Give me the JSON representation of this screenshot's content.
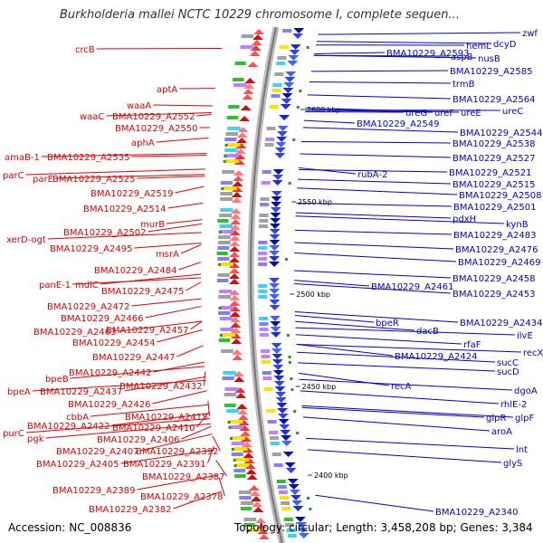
{
  "title": "Burkholderia mallei NCTC 10229 chromosome I, complete sequen...",
  "footer": {
    "accession": "Accession: NC_008836",
    "topology": "Topology: circular; Length: 3,458,208 bp; Genes: 3,384"
  },
  "colors": {
    "left_strand": "#e00000",
    "right_strand": "#0000d0",
    "backbone": "#888888",
    "tick": "#229922"
  },
  "kbp_marks": [
    "2600 kbp",
    "2550 kbp",
    "2500 kbp",
    "2450 kbp",
    "2400 kbp"
  ],
  "left_labels": [
    "crcB",
    "aptA",
    "waaA",
    "waaC",
    "BMA10229_A2552",
    "BMA10229_A2550",
    "aphA",
    "amaB-1",
    "BMA10229_A2535",
    "parC",
    "parE",
    "BMA10229_A2525",
    "BMA10229_A2519",
    "BMA10229_A2514",
    "murB",
    "BMA10229_A2502",
    "xerD-ogt",
    "BMA10229_A2495",
    "msrA",
    "BMA10229_A2484",
    "panE-1",
    "mdlC",
    "BMA10229_A2475",
    "BMA10229_A2472",
    "BMA10229_A2466",
    "BMA10229_A2463",
    "BMA10229_A2457",
    "BMA10229_A2454",
    "BMA10229_A2447",
    "BMA10229_A2442",
    "BMA10229_A2432",
    "bpeB",
    "bpeA",
    "BMA10229_A2437",
    "BMA10229_A2426",
    "cbbA",
    "BMA10229_A2415",
    "purC",
    "BMA10229_A2422",
    "BMA10229_A2410",
    "pgk",
    "BMA10229_A2406",
    "BMA10229_A2407",
    "BMA10229_A2392",
    "BMA10229_A2405",
    "BMA10229_A2391",
    "BMA10229_A2387",
    "BMA10229_A2389",
    "BMA10229_A2378",
    "BMA10229_A2382"
  ],
  "right_labels": [
    "zwf",
    "hemL",
    "dcyD",
    "BMA10229_A2593",
    "aspB",
    "nusB",
    "BMA10229_A2585",
    "trmB",
    "BMA10229_A2564",
    "ureG",
    "ureF",
    "ureE",
    "ureC",
    "BMA10229_A2549",
    "BMA10229_A2544",
    "BMA10229_A2538",
    "BMA10229_A2527",
    "rubA-2",
    "BMA10229_A2521",
    "BMA10229_A2515",
    "BMA10229_A2508",
    "BMA10229_A2501",
    "pdxH",
    "kynB",
    "BMA10229_A2483",
    "BMA10229_A2476",
    "BMA10229_A2469",
    "BMA10229_A2461",
    "BMA10229_A2458",
    "BMA10229_A2453",
    "bpeR",
    "dacB",
    "BMA10229_A2434",
    "ilvE",
    "rfaF",
    "BMA10229_A2424",
    "recX",
    "sucC",
    "recA",
    "sucD",
    "dgoA",
    "rhlE-2",
    "glpR",
    "glpF",
    "aroA",
    "lnt",
    "glyS",
    "BMA10229_A2340"
  ]
}
